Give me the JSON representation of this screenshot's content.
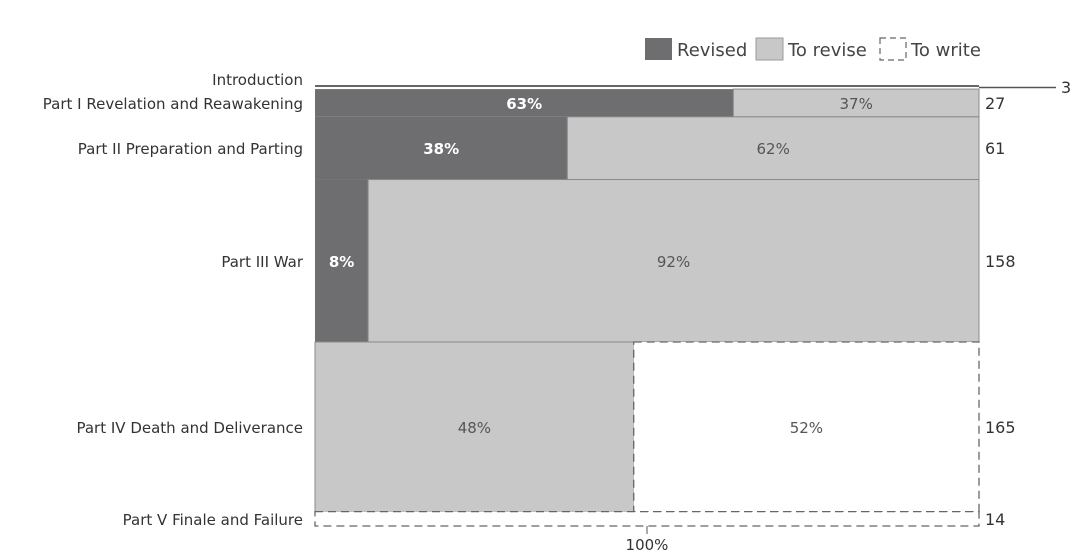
{
  "chart_data": {
    "type": "mekko",
    "title": "",
    "legend": [
      {
        "name": "Revised",
        "color": "#6e6e70",
        "style": "solid"
      },
      {
        "name": "To revise",
        "color": "#c8c8c8",
        "style": "solid"
      },
      {
        "name": "To write",
        "color": "#ffffff",
        "style": "dashed"
      }
    ],
    "legend_position": "top-right",
    "x_axis_label": "100%",
    "categories": [
      {
        "name": "Introduction",
        "count": "3",
        "revised": 0,
        "to_revise": 0,
        "to_write": 0,
        "revised_label": "",
        "to_revise_label": "",
        "to_write_label": ""
      },
      {
        "name": "Part I Revelation and Reawakening",
        "count": "27",
        "revised": 63,
        "to_revise": 37,
        "to_write": 0,
        "revised_label": "63%",
        "to_revise_label": "37%",
        "to_write_label": ""
      },
      {
        "name": "Part II Preparation and Parting",
        "count": "61",
        "revised": 38,
        "to_revise": 62,
        "to_write": 0,
        "revised_label": "38%",
        "to_revise_label": "62%",
        "to_write_label": ""
      },
      {
        "name": "Part III War",
        "count": "158",
        "revised": 8,
        "to_revise": 92,
        "to_write": 0,
        "revised_label": "8%",
        "to_revise_label": "92%",
        "to_write_label": ""
      },
      {
        "name": "Part IV Death and Deliverance",
        "count": "165",
        "revised": 0,
        "to_revise": 48,
        "to_write": 52,
        "revised_label": "",
        "to_revise_label": "48%",
        "to_write_label": "52%"
      },
      {
        "name": "Part V Finale and Failure",
        "count": "14",
        "revised": 0,
        "to_revise": 0,
        "to_write": 100,
        "revised_label": "",
        "to_revise_label": "",
        "to_write_label": ""
      }
    ]
  }
}
